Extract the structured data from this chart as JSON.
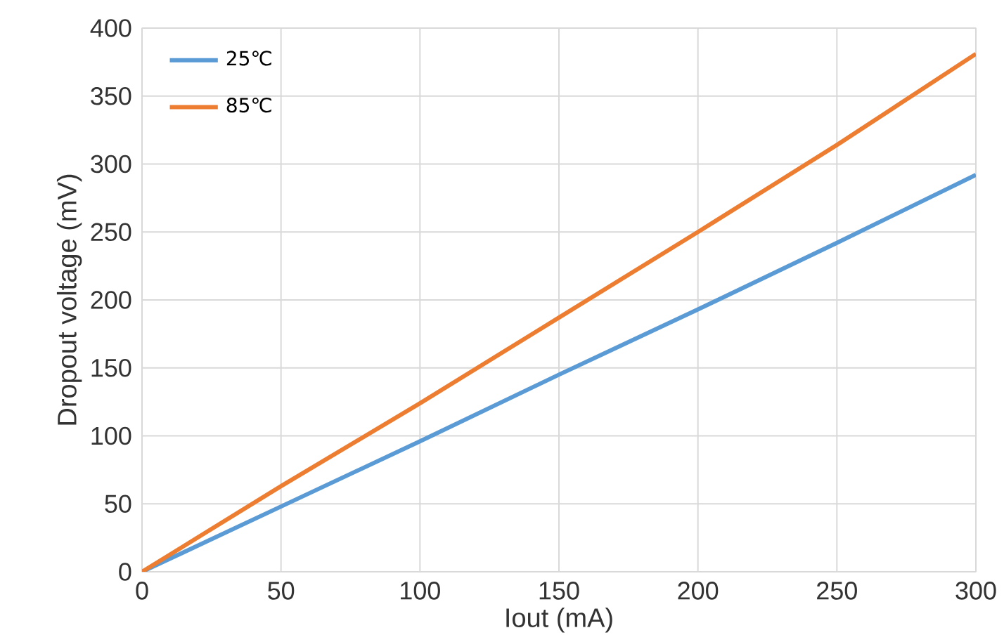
{
  "chart_data": {
    "type": "line",
    "xlabel": "Iout (mA)",
    "ylabel": "Dropout voltage (mV)",
    "x": [
      0,
      50,
      100,
      150,
      200,
      250,
      300
    ],
    "series": [
      {
        "name": "25℃",
        "color": "#5b9bd5",
        "values": [
          0,
          48,
          96,
          145,
          193,
          242,
          292
        ]
      },
      {
        "name": "85℃",
        "color": "#ed7d31",
        "values": [
          0,
          63,
          124,
          187,
          250,
          314,
          381
        ]
      }
    ],
    "xlim": [
      0,
      300
    ],
    "ylim": [
      0,
      400
    ],
    "xticks": [
      0,
      50,
      100,
      150,
      200,
      250,
      300
    ],
    "yticks": [
      0,
      50,
      100,
      150,
      200,
      250,
      300,
      350,
      400
    ],
    "grid": true,
    "legend": "top left",
    "marker": "none",
    "line_style": "solid"
  }
}
